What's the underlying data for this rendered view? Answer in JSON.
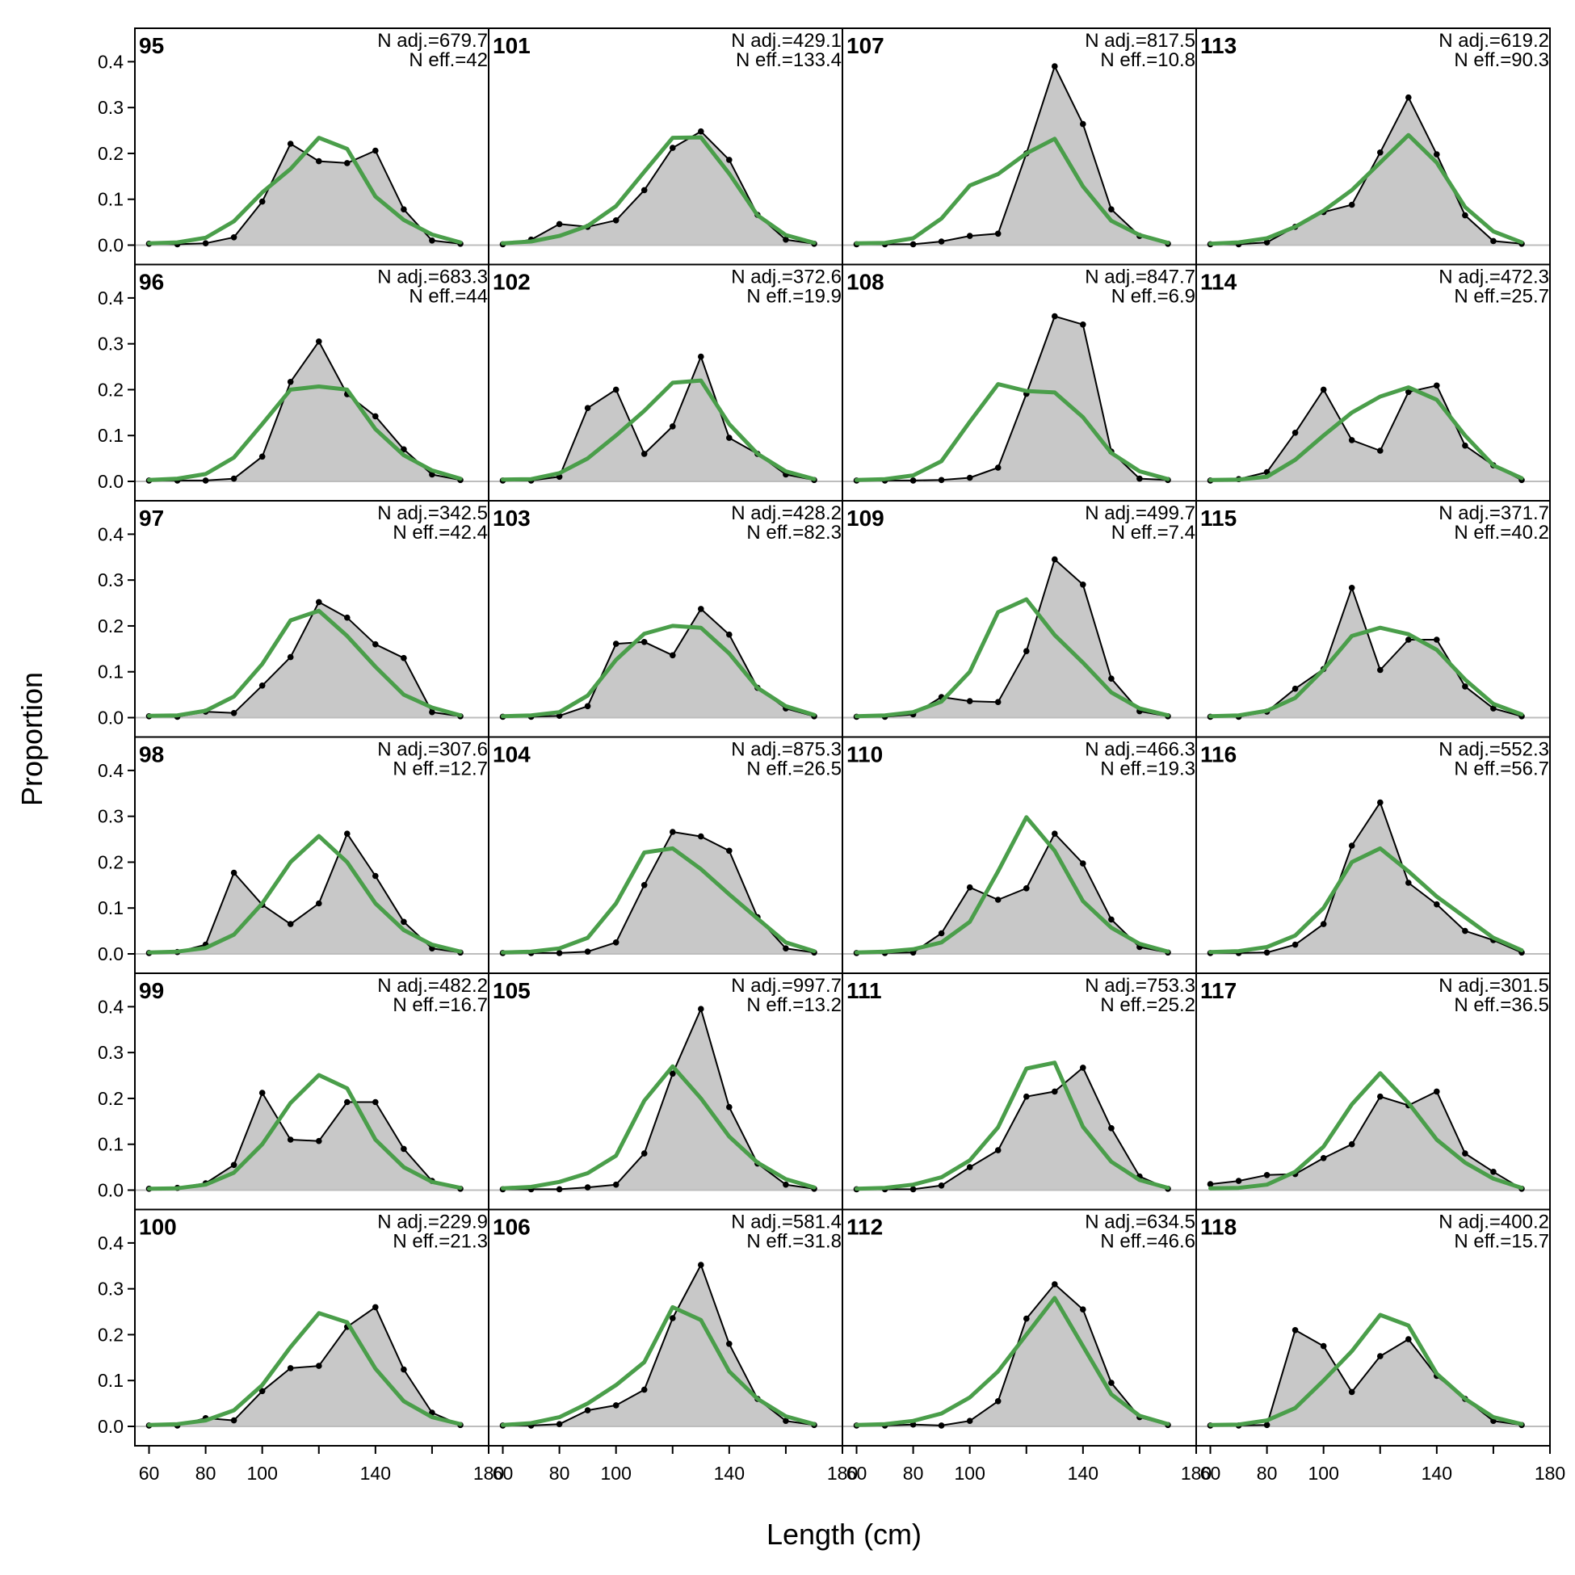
{
  "chart_data": {
    "type": "line",
    "xlabel": "Length (cm)",
    "ylabel": "Proportion",
    "xlim": [
      55,
      180
    ],
    "ylim": [
      0,
      0.45
    ],
    "xticks": [
      60,
      80,
      100,
      140,
      180
    ],
    "xtick_labels": [
      "60",
      "80",
      "100",
      "140",
      "180"
    ],
    "yticks": [
      0.0,
      0.1,
      0.2,
      0.3,
      0.4
    ],
    "ytick_labels": [
      "0.0",
      "0.1",
      "0.2",
      "0.3",
      "0.4"
    ],
    "x": [
      60,
      70,
      80,
      90,
      100,
      110,
      120,
      130,
      140,
      150,
      160,
      170
    ],
    "observed_color": "#000000",
    "observed_fill": "#c8c8c8",
    "expected_color": "#4a9e4a",
    "grid": false,
    "layout": {
      "rows": 6,
      "cols": 4
    },
    "panels": [
      {
        "id": "95",
        "n_adj": "N adj.=679.7",
        "n_eff": "N eff.=42",
        "observed": [
          0.003,
          0.002,
          0.004,
          0.017,
          0.095,
          0.221,
          0.183,
          0.179,
          0.206,
          0.078,
          0.01,
          0.003
        ],
        "expected": [
          0.004,
          0.006,
          0.016,
          0.052,
          0.115,
          0.166,
          0.234,
          0.21,
          0.106,
          0.055,
          0.023,
          0.006
        ]
      },
      {
        "id": "96",
        "n_adj": "N adj.=683.3",
        "n_eff": "N eff.=44",
        "observed": [
          0.002,
          0.002,
          0.002,
          0.006,
          0.054,
          0.217,
          0.305,
          0.19,
          0.142,
          0.07,
          0.015,
          0.003
        ],
        "expected": [
          0.003,
          0.006,
          0.016,
          0.052,
          0.125,
          0.2,
          0.207,
          0.2,
          0.114,
          0.057,
          0.024,
          0.006
        ]
      },
      {
        "id": "97",
        "n_adj": "N adj.=342.5",
        "n_eff": "N eff.=42.4",
        "observed": [
          0.003,
          0.002,
          0.013,
          0.01,
          0.07,
          0.132,
          0.252,
          0.218,
          0.16,
          0.13,
          0.012,
          0.003
        ],
        "expected": [
          0.004,
          0.005,
          0.015,
          0.046,
          0.117,
          0.212,
          0.233,
          0.178,
          0.111,
          0.05,
          0.022,
          0.005
        ]
      },
      {
        "id": "98",
        "n_adj": "N adj.=307.6",
        "n_eff": "N eff.=12.7",
        "observed": [
          0.002,
          0.004,
          0.02,
          0.177,
          0.107,
          0.065,
          0.11,
          0.262,
          0.17,
          0.07,
          0.012,
          0.003
        ],
        "expected": [
          0.003,
          0.005,
          0.013,
          0.042,
          0.11,
          0.2,
          0.257,
          0.2,
          0.11,
          0.052,
          0.02,
          0.005
        ]
      },
      {
        "id": "99",
        "n_adj": "N adj.=482.2",
        "n_eff": "N eff.=16.7",
        "observed": [
          0.003,
          0.005,
          0.015,
          0.055,
          0.212,
          0.11,
          0.107,
          0.192,
          0.192,
          0.09,
          0.02,
          0.003
        ],
        "expected": [
          0.003,
          0.004,
          0.012,
          0.038,
          0.1,
          0.19,
          0.251,
          0.222,
          0.11,
          0.05,
          0.018,
          0.005
        ]
      },
      {
        "id": "100",
        "n_adj": "N adj.=229.9",
        "n_eff": "N eff.=21.3",
        "observed": [
          0.002,
          0.002,
          0.018,
          0.013,
          0.077,
          0.127,
          0.132,
          0.217,
          0.26,
          0.124,
          0.03,
          0.003
        ],
        "expected": [
          0.003,
          0.005,
          0.013,
          0.035,
          0.09,
          0.173,
          0.247,
          0.227,
          0.126,
          0.055,
          0.02,
          0.005
        ]
      },
      {
        "id": "101",
        "n_adj": "N adj.=429.1",
        "n_eff": "N eff.=133.4",
        "observed": [
          0.002,
          0.012,
          0.046,
          0.04,
          0.054,
          0.12,
          0.212,
          0.248,
          0.186,
          0.066,
          0.012,
          0.003
        ],
        "expected": [
          0.004,
          0.008,
          0.02,
          0.042,
          0.085,
          0.16,
          0.234,
          0.235,
          0.156,
          0.065,
          0.022,
          0.005
        ]
      },
      {
        "id": "102",
        "n_adj": "N adj.=372.6",
        "n_eff": "N eff.=19.9",
        "observed": [
          0.002,
          0.002,
          0.01,
          0.16,
          0.2,
          0.06,
          0.12,
          0.272,
          0.095,
          0.06,
          0.015,
          0.003
        ],
        "expected": [
          0.004,
          0.005,
          0.018,
          0.05,
          0.1,
          0.154,
          0.215,
          0.22,
          0.125,
          0.06,
          0.022,
          0.005
        ]
      },
      {
        "id": "103",
        "n_adj": "N adj.=428.2",
        "n_eff": "N eff.=82.3",
        "observed": [
          0.002,
          0.002,
          0.004,
          0.025,
          0.161,
          0.165,
          0.136,
          0.237,
          0.181,
          0.065,
          0.02,
          0.003
        ],
        "expected": [
          0.003,
          0.005,
          0.012,
          0.048,
          0.126,
          0.183,
          0.2,
          0.196,
          0.14,
          0.065,
          0.025,
          0.006
        ]
      },
      {
        "id": "104",
        "n_adj": "N adj.=875.3",
        "n_eff": "N eff.=26.5",
        "observed": [
          0.002,
          0.002,
          0.002,
          0.005,
          0.025,
          0.15,
          0.266,
          0.256,
          0.225,
          0.08,
          0.012,
          0.003
        ],
        "expected": [
          0.003,
          0.005,
          0.012,
          0.035,
          0.11,
          0.221,
          0.23,
          0.185,
          0.13,
          0.077,
          0.025,
          0.006
        ]
      },
      {
        "id": "105",
        "n_adj": "N adj.=997.7",
        "n_eff": "N eff.=13.2",
        "observed": [
          0.002,
          0.002,
          0.002,
          0.006,
          0.012,
          0.08,
          0.254,
          0.395,
          0.181,
          0.058,
          0.012,
          0.003
        ],
        "expected": [
          0.004,
          0.007,
          0.018,
          0.037,
          0.075,
          0.195,
          0.27,
          0.2,
          0.117,
          0.06,
          0.024,
          0.006
        ]
      },
      {
        "id": "106",
        "n_adj": "N adj.=581.4",
        "n_eff": "N eff.=31.8",
        "observed": [
          0.002,
          0.002,
          0.005,
          0.035,
          0.046,
          0.08,
          0.236,
          0.352,
          0.18,
          0.06,
          0.012,
          0.003
        ],
        "expected": [
          0.003,
          0.007,
          0.02,
          0.05,
          0.09,
          0.14,
          0.26,
          0.232,
          0.12,
          0.06,
          0.022,
          0.005
        ]
      },
      {
        "id": "107",
        "n_adj": "N adj.=817.5",
        "n_eff": "N eff.=10.8",
        "observed": [
          0.002,
          0.002,
          0.002,
          0.008,
          0.02,
          0.025,
          0.2,
          0.39,
          0.264,
          0.078,
          0.02,
          0.003
        ],
        "expected": [
          0.004,
          0.005,
          0.015,
          0.058,
          0.13,
          0.155,
          0.2,
          0.232,
          0.128,
          0.053,
          0.022,
          0.005
        ]
      },
      {
        "id": "108",
        "n_adj": "N adj.=847.7",
        "n_eff": "N eff.=6.9",
        "observed": [
          0.002,
          0.002,
          0.002,
          0.003,
          0.008,
          0.03,
          0.191,
          0.36,
          0.342,
          0.065,
          0.006,
          0.003
        ],
        "expected": [
          0.003,
          0.005,
          0.013,
          0.044,
          0.13,
          0.212,
          0.197,
          0.194,
          0.14,
          0.062,
          0.022,
          0.005
        ]
      },
      {
        "id": "109",
        "n_adj": "N adj.=499.7",
        "n_eff": "N eff.=7.4",
        "observed": [
          0.002,
          0.002,
          0.007,
          0.045,
          0.036,
          0.034,
          0.145,
          0.345,
          0.29,
          0.085,
          0.014,
          0.003
        ],
        "expected": [
          0.003,
          0.005,
          0.012,
          0.035,
          0.1,
          0.23,
          0.258,
          0.18,
          0.12,
          0.055,
          0.02,
          0.005
        ]
      },
      {
        "id": "110",
        "n_adj": "N adj.=466.3",
        "n_eff": "N eff.=19.3",
        "observed": [
          0.002,
          0.002,
          0.003,
          0.045,
          0.145,
          0.118,
          0.143,
          0.262,
          0.197,
          0.075,
          0.015,
          0.003
        ],
        "expected": [
          0.003,
          0.005,
          0.01,
          0.025,
          0.07,
          0.18,
          0.298,
          0.225,
          0.115,
          0.057,
          0.022,
          0.005
        ]
      },
      {
        "id": "111",
        "n_adj": "N adj.=753.3",
        "n_eff": "N eff.=25.2",
        "observed": [
          0.002,
          0.002,
          0.002,
          0.01,
          0.05,
          0.087,
          0.204,
          0.215,
          0.267,
          0.135,
          0.03,
          0.003
        ],
        "expected": [
          0.003,
          0.005,
          0.012,
          0.028,
          0.065,
          0.137,
          0.265,
          0.278,
          0.138,
          0.062,
          0.022,
          0.005
        ]
      },
      {
        "id": "112",
        "n_adj": "N adj.=634.5",
        "n_eff": "N eff.=46.6",
        "observed": [
          0.002,
          0.002,
          0.004,
          0.002,
          0.012,
          0.055,
          0.235,
          0.31,
          0.255,
          0.095,
          0.02,
          0.003
        ],
        "expected": [
          0.003,
          0.005,
          0.012,
          0.028,
          0.063,
          0.12,
          0.2,
          0.28,
          0.175,
          0.07,
          0.023,
          0.005
        ]
      },
      {
        "id": "113",
        "n_adj": "N adj.=619.2",
        "n_eff": "N eff.=90.3",
        "observed": [
          0.002,
          0.002,
          0.006,
          0.04,
          0.072,
          0.088,
          0.202,
          0.322,
          0.198,
          0.065,
          0.009,
          0.003
        ],
        "expected": [
          0.003,
          0.006,
          0.015,
          0.04,
          0.075,
          0.12,
          0.18,
          0.24,
          0.18,
          0.083,
          0.03,
          0.006
        ]
      },
      {
        "id": "114",
        "n_adj": "N adj.=472.3",
        "n_eff": "N eff.=25.7",
        "observed": [
          0.002,
          0.005,
          0.02,
          0.106,
          0.2,
          0.09,
          0.067,
          0.195,
          0.209,
          0.078,
          0.035,
          0.003
        ],
        "expected": [
          0.003,
          0.004,
          0.01,
          0.047,
          0.1,
          0.15,
          0.185,
          0.205,
          0.178,
          0.1,
          0.035,
          0.007
        ]
      },
      {
        "id": "115",
        "n_adj": "N adj.=371.7",
        "n_eff": "N eff.=40.2",
        "observed": [
          0.002,
          0.002,
          0.013,
          0.063,
          0.106,
          0.283,
          0.104,
          0.17,
          0.17,
          0.068,
          0.02,
          0.003
        ],
        "expected": [
          0.003,
          0.005,
          0.015,
          0.043,
          0.105,
          0.178,
          0.196,
          0.182,
          0.148,
          0.083,
          0.03,
          0.007
        ]
      },
      {
        "id": "116",
        "n_adj": "N adj.=552.3",
        "n_eff": "N eff.=56.7",
        "observed": [
          0.002,
          0.002,
          0.003,
          0.02,
          0.065,
          0.236,
          0.33,
          0.155,
          0.108,
          0.05,
          0.03,
          0.003
        ],
        "expected": [
          0.004,
          0.006,
          0.015,
          0.04,
          0.1,
          0.2,
          0.23,
          0.18,
          0.125,
          0.08,
          0.035,
          0.008
        ]
      },
      {
        "id": "117",
        "n_adj": "N adj.=301.5",
        "n_eff": "N eff.=36.5",
        "observed": [
          0.013,
          0.02,
          0.033,
          0.035,
          0.07,
          0.1,
          0.204,
          0.185,
          0.215,
          0.08,
          0.04,
          0.003
        ],
        "expected": [
          0.004,
          0.005,
          0.012,
          0.04,
          0.095,
          0.187,
          0.255,
          0.19,
          0.11,
          0.06,
          0.025,
          0.005
        ]
      },
      {
        "id": "118",
        "n_adj": "N adj.=400.2",
        "n_eff": "N eff.=15.7",
        "observed": [
          0.002,
          0.002,
          0.003,
          0.21,
          0.175,
          0.075,
          0.153,
          0.19,
          0.11,
          0.06,
          0.012,
          0.003
        ],
        "expected": [
          0.003,
          0.004,
          0.013,
          0.04,
          0.1,
          0.164,
          0.243,
          0.22,
          0.115,
          0.06,
          0.02,
          0.005
        ]
      }
    ]
  }
}
